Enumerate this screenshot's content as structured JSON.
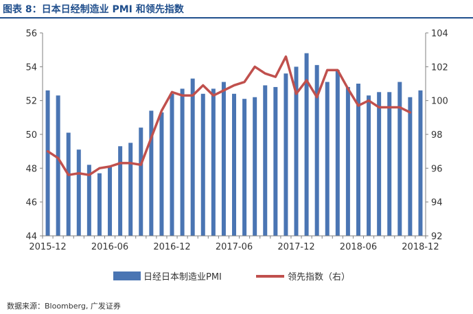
{
  "title": "图表 8：日本日经制造业 PMI 和领先指数",
  "source": "数据来源：Bloomberg, 广发证券",
  "colors": {
    "bar": "#4a75b3",
    "line": "#c0504d",
    "title": "#1f4e8c",
    "axis": "#7f7f7f"
  },
  "chart_data": {
    "type": "bar",
    "title": "",
    "x": [
      "2015-12",
      "2016-01",
      "2016-02",
      "2016-03",
      "2016-04",
      "2016-05",
      "2016-06",
      "2016-07",
      "2016-08",
      "2016-09",
      "2016-10",
      "2016-11",
      "2016-12",
      "2017-01",
      "2017-02",
      "2017-03",
      "2017-04",
      "2017-05",
      "2017-06",
      "2017-07",
      "2017-08",
      "2017-09",
      "2017-10",
      "2017-11",
      "2017-12",
      "2018-01",
      "2018-02",
      "2018-03",
      "2018-04",
      "2018-05",
      "2018-06",
      "2018-07",
      "2018-08",
      "2018-09",
      "2018-10",
      "2018-11",
      "2018-12"
    ],
    "x_tick_labels": [
      "2015-12",
      "2016-06",
      "2016-12",
      "2017-06",
      "2017-12",
      "2018-06",
      "2018-12"
    ],
    "y_left": {
      "ylim": [
        44,
        56
      ],
      "ticks": [
        "44",
        "46",
        "48",
        "50",
        "52",
        "54",
        "56"
      ]
    },
    "y_right": {
      "ylim": [
        92,
        104
      ],
      "ticks": [
        "92",
        "94",
        "96",
        "98",
        "100",
        "102",
        "104"
      ]
    },
    "grid": false,
    "legend": {
      "position": "bottom"
    },
    "series": [
      {
        "name": "日经日本制造业PMI",
        "type": "bar",
        "axis": "left",
        "values": [
          52.6,
          52.3,
          50.1,
          49.1,
          48.2,
          47.7,
          48.1,
          49.3,
          49.5,
          50.4,
          51.4,
          51.3,
          52.4,
          52.7,
          53.3,
          52.4,
          52.7,
          53.1,
          52.4,
          52.1,
          52.2,
          52.9,
          52.8,
          53.6,
          54.0,
          54.8,
          54.1,
          53.1,
          53.8,
          52.8,
          53.0,
          52.3,
          52.5,
          52.5,
          53.1,
          52.2,
          52.6
        ]
      },
      {
        "name": "领先指数（右）",
        "type": "line",
        "axis": "right",
        "values": [
          97.0,
          96.6,
          95.6,
          95.7,
          95.6,
          96.0,
          96.1,
          96.3,
          96.3,
          96.2,
          97.8,
          99.4,
          100.5,
          100.3,
          100.3,
          100.9,
          100.3,
          100.6,
          100.9,
          101.1,
          102.0,
          101.6,
          101.4,
          102.6,
          100.4,
          101.2,
          100.2,
          101.8,
          101.8,
          100.7,
          99.7,
          100.0,
          99.6,
          99.6,
          99.6,
          99.3,
          null
        ]
      }
    ]
  }
}
